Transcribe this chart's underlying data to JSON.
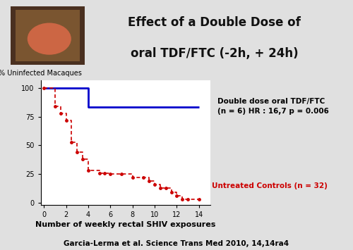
{
  "title_line1": "Effect of a Double Dose of",
  "title_line2": "oral TDF/FTC (-2h, + 24h)",
  "title_bg_color": "#b8dce8",
  "chart_bg_color": "#ffffff",
  "outer_bg_color": "#e0e0e0",
  "ylabel": "% Uninfected Macaques",
  "xlabel": "Number of weekly rectal SHIV exposures",
  "footer": "Garcia-Lerma et al. Science Trans Med 2010, 14,14ra4",
  "ylim": [
    -2,
    107
  ],
  "xlim": [
    -0.3,
    15.0
  ],
  "xticks": [
    0,
    2,
    4,
    6,
    8,
    10,
    12,
    14
  ],
  "yticks": [
    0,
    25,
    50,
    75,
    100
  ],
  "blue_line_x": [
    0,
    4,
    4,
    14
  ],
  "blue_line_y": [
    100,
    100,
    83.3,
    83.3
  ],
  "blue_color": "#0000cc",
  "blue_label_line1": "Double dose oral TDF/FTC",
  "blue_label_line2": "(n = 6) HR : 16,7 p = 0.006",
  "red_line_x": [
    0,
    1,
    1,
    1.5,
    1.5,
    2,
    2,
    2.5,
    2.5,
    3,
    3,
    3.5,
    3.5,
    4,
    4,
    5,
    5,
    5.5,
    5.5,
    6,
    6,
    7,
    7,
    8,
    8,
    9,
    9,
    9.5,
    9.5,
    10,
    10,
    10.5,
    10.5,
    11,
    11,
    11.5,
    11.5,
    12,
    12,
    12.5,
    12.5,
    13,
    13,
    14
  ],
  "red_line_y": [
    100,
    100,
    84,
    84,
    78,
    78,
    72,
    72,
    53,
    53,
    44,
    44,
    38,
    38,
    28,
    28,
    26,
    26,
    26,
    26,
    25,
    25,
    25,
    25,
    22,
    22,
    22,
    22,
    19,
    19,
    16,
    16,
    13,
    13,
    13,
    13,
    9,
    9,
    6,
    6,
    3,
    3,
    3,
    3
  ],
  "red_color": "#cc0000",
  "red_label": "Untreated Controls (n = 32)",
  "title_fontsize": 12,
  "label_fontsize": 7,
  "tick_fontsize": 7
}
